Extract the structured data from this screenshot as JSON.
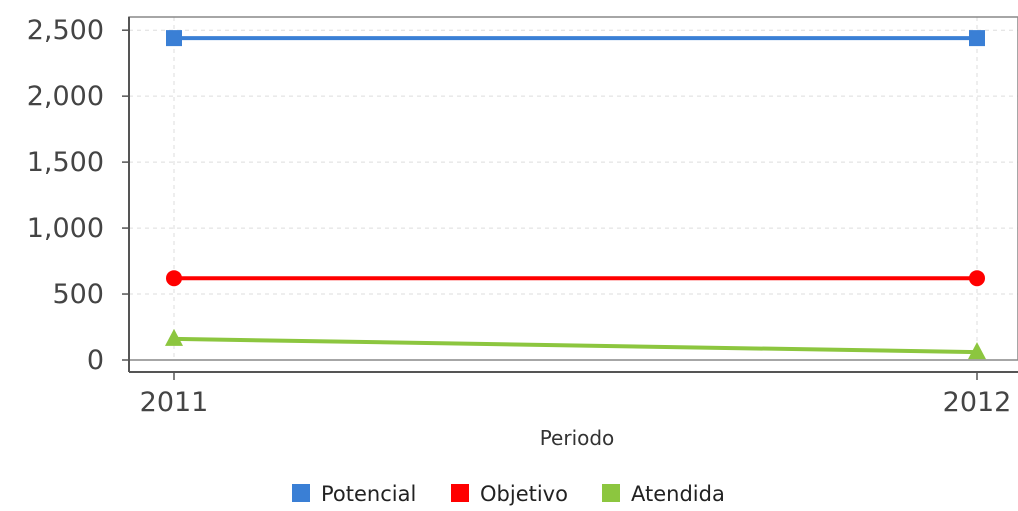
{
  "chart_data": {
    "type": "line",
    "title": "",
    "xlabel": "Periodo",
    "ylabel": "",
    "categories": [
      "2011",
      "2012"
    ],
    "ylim": [
      0,
      2600
    ],
    "y_ticks": [
      0,
      500,
      1000,
      1500,
      2000,
      2500
    ],
    "y_tick_labels": [
      "0",
      "500",
      "1,000",
      "1,500",
      "2,000",
      "2,500"
    ],
    "grid": true,
    "legend_position": "bottom",
    "series": [
      {
        "name": "Potencial",
        "values": [
          2440,
          2440
        ],
        "color": "#3a7fd5",
        "marker": "square"
      },
      {
        "name": "Objetivo",
        "values": [
          620,
          620
        ],
        "color": "#ff0000",
        "marker": "circle"
      },
      {
        "name": "Atendida",
        "values": [
          160,
          60
        ],
        "color": "#8cc63f",
        "marker": "triangle"
      }
    ]
  }
}
